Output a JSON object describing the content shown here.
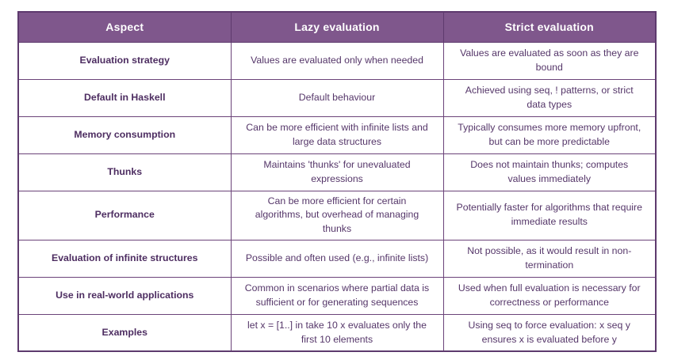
{
  "colors": {
    "header_bg": "#7f578c",
    "outer_border": "#5e3a6e",
    "grid_border": "#6b4379",
    "header_text": "#ffffff",
    "aspect_text": "#4d2d61",
    "body_text": "#553669",
    "cell_bg": "#ffffff"
  },
  "table": {
    "columns": [
      "Aspect",
      "Lazy evaluation",
      "Strict evaluation"
    ],
    "rows": [
      {
        "aspect": "Evaluation strategy",
        "lazy": "Values are evaluated only when needed",
        "strict": "Values are evaluated as soon as they are bound"
      },
      {
        "aspect": "Default in Haskell",
        "lazy": "Default behaviour",
        "strict": "Achieved using seq, ! patterns, or strict data types"
      },
      {
        "aspect": "Memory consumption",
        "lazy": "Can be more efficient with infinite lists and large data structures",
        "strict": "Typically consumes more memory upfront, but can be more predictable"
      },
      {
        "aspect": "Thunks",
        "lazy": "Maintains 'thunks' for unevaluated expressions",
        "strict": "Does not maintain thunks; computes values immediately"
      },
      {
        "aspect": "Performance",
        "lazy": "Can be more efficient for certain algorithms, but overhead of managing thunks",
        "strict": "Potentially faster for algorithms that require immediate results"
      },
      {
        "aspect": "Evaluation of infinite structures",
        "lazy": "Possible and often used (e.g., infinite lists)",
        "strict": "Not possible, as it would result in non-termination"
      },
      {
        "aspect": "Use in real-world applications",
        "lazy": "Common in scenarios where partial data is sufficient or for generating sequences",
        "strict": "Used when full evaluation is necessary for correctness or performance"
      },
      {
        "aspect": "Examples",
        "lazy": "let x = [1..] in take 10 x evaluates only the first 10 elements",
        "strict": "Using seq to force evaluation: x seq y ensures x is evaluated before y"
      }
    ]
  }
}
